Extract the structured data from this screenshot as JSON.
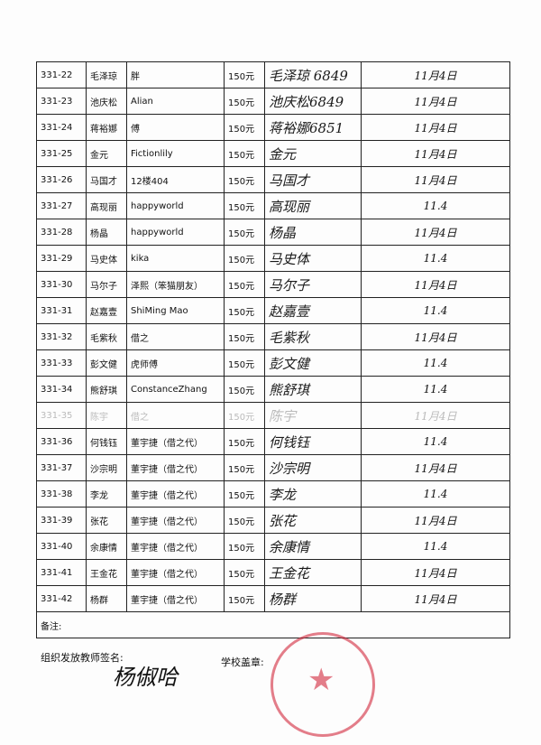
{
  "table": {
    "rows": [
      [
        "331-22",
        "毛泽琼",
        "胖",
        "150元",
        "毛泽琼 6849",
        "11月4日"
      ],
      [
        "331-23",
        "池庆松",
        "Alian",
        "150元",
        "池庆松6849",
        "11月4日"
      ],
      [
        "331-24",
        "蒋裕娜",
        "傅",
        "150元",
        "蒋裕娜6851",
        "11月4日"
      ],
      [
        "331-25",
        "金元",
        "Fictionlily",
        "150元",
        "金元",
        "11月4日"
      ],
      [
        "331-26",
        "马国才",
        "12楼404",
        "150元",
        "马国才",
        "11月4日"
      ],
      [
        "331-27",
        "高现丽",
        "happyworld",
        "150元",
        "高现丽",
        "11.4"
      ],
      [
        "331-28",
        "杨晶",
        "happyworld",
        "150元",
        "杨晶",
        "11月4日"
      ],
      [
        "331-29",
        "马史体",
        "kika",
        "150元",
        "马史体",
        "11.4"
      ],
      [
        "331-30",
        "马尔子",
        "泽熙（笨猫朋友）",
        "150元",
        "马尔子",
        "11月4日"
      ],
      [
        "331-31",
        "赵嘉壹",
        "ShiMing Mao",
        "150元",
        "赵嘉壹",
        "11.4"
      ],
      [
        "331-32",
        "毛紫秋",
        "借之",
        "150元",
        "毛紫秋",
        "11月4日"
      ],
      [
        "331-33",
        "彭文健",
        "虎师傅",
        "150元",
        "彭文健",
        "11.4"
      ],
      [
        "331-34",
        "熊舒琪",
        "ConstanceZhang",
        "150元",
        "熊舒琪",
        "11.4"
      ],
      [
        "331-35",
        "陈宇",
        "借之",
        "150元",
        "陈宇",
        "11月4日"
      ],
      [
        "331-36",
        "何钱钰",
        "董宇捷（借之代）",
        "150元",
        "何钱钰",
        "11.4"
      ],
      [
        "331-37",
        "沙宗明",
        "董宇捷（借之代）",
        "150元",
        "沙宗明",
        "11月4日"
      ],
      [
        "331-38",
        "李龙",
        "董宇捷（借之代）",
        "150元",
        "李龙",
        "11.4"
      ],
      [
        "331-39",
        "张花",
        "董宇捷（借之代）",
        "150元",
        "张花",
        "11月4日"
      ],
      [
        "331-40",
        "余康情",
        "董宇捷（借之代）",
        "150元",
        "余康情",
        "11.4"
      ],
      [
        "331-41",
        "王金花",
        "董宇捷（借之代）",
        "150元",
        "王金花",
        "11月4日"
      ],
      [
        "331-42",
        "杨群",
        "董宇捷（借之代）",
        "150元",
        "杨群",
        "11月4日"
      ]
    ],
    "note_label": "备注:"
  },
  "footer": {
    "teacher_label": "组织发放教师签名:",
    "teacher_signature": "杨俶哈",
    "stamp_label": "学校盖章:"
  }
}
